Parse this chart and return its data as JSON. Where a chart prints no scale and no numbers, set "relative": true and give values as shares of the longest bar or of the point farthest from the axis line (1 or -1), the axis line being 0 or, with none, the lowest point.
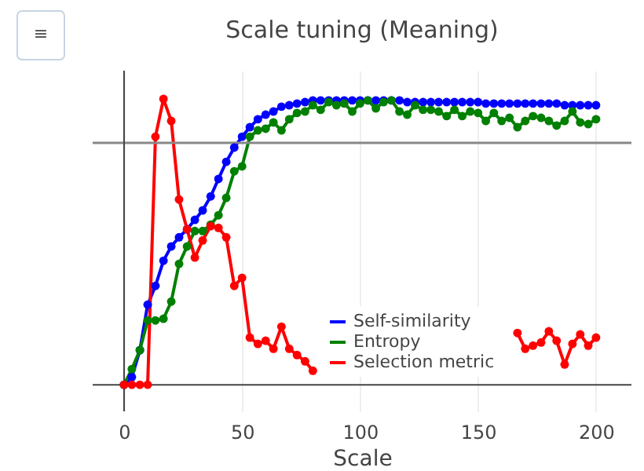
{
  "chart_data": {
    "type": "line",
    "title": "Scale tuning (Meaning)",
    "xlabel": "Scale",
    "relative": true,
    "marker": "circle",
    "line_style": "solid",
    "grid": "x",
    "legend": "bottom right",
    "annotations": [
      "≡"
    ],
    "x": [
      0,
      3.3,
      6.7,
      10,
      13.3,
      16.7,
      20,
      23.3,
      26.7,
      30,
      33.3,
      36.7,
      40,
      43.3,
      46.7,
      50,
      53.3,
      56.7,
      60,
      63.3,
      66.7,
      70,
      73.3,
      76.7,
      80,
      83.3,
      86.7,
      90,
      93.3,
      96.7,
      100,
      103.3,
      106.7,
      110,
      113.3,
      116.7,
      120,
      123.3,
      126.7,
      130,
      133.3,
      136.7,
      140,
      143.3,
      146.7,
      150,
      153.3,
      156.7,
      160,
      163.3,
      166.7,
      170,
      173.3,
      176.7,
      180,
      183.3,
      186.7,
      190,
      193.3,
      196.7,
      200
    ],
    "xlim": [
      -13.3,
      215
    ],
    "xticks": [
      0,
      50,
      100,
      150,
      200
    ],
    "ref_lines": [
      {
        "axis": "y",
        "value": 0.846,
        "color": "#888888"
      }
    ],
    "series": [
      {
        "name": "Self-similarity",
        "color": "#0000ff",
        "values": [
          0,
          0.027,
          0.121,
          0.28,
          0.346,
          0.434,
          0.484,
          0.516,
          0.544,
          0.577,
          0.61,
          0.659,
          0.72,
          0.78,
          0.83,
          0.868,
          0.901,
          0.929,
          0.945,
          0.956,
          0.973,
          0.978,
          0.984,
          0.989,
          0.995,
          0.995,
          0.995,
          0.995,
          0.995,
          0.995,
          0.995,
          0.995,
          0.995,
          0.995,
          0.995,
          0.995,
          0.989,
          0.989,
          0.989,
          0.989,
          0.989,
          0.989,
          0.989,
          0.989,
          0.989,
          0.989,
          0.984,
          0.984,
          0.984,
          0.984,
          0.984,
          0.984,
          0.984,
          0.984,
          0.984,
          0.984,
          0.978,
          0.978,
          0.978,
          0.978,
          0.978
        ]
      },
      {
        "name": "Entropy",
        "color": "#008000",
        "values": [
          0,
          0.055,
          0.121,
          0.225,
          0.225,
          0.231,
          0.291,
          0.423,
          0.484,
          0.538,
          0.538,
          0.56,
          0.593,
          0.654,
          0.747,
          0.764,
          0.868,
          0.89,
          0.896,
          0.918,
          0.89,
          0.929,
          0.951,
          0.956,
          0.978,
          0.962,
          0.989,
          0.978,
          0.984,
          0.956,
          0.984,
          0.995,
          0.967,
          0.989,
          0.995,
          0.956,
          0.945,
          0.978,
          0.962,
          0.962,
          0.956,
          0.94,
          0.962,
          0.94,
          0.956,
          0.951,
          0.923,
          0.951,
          0.923,
          0.934,
          0.901,
          0.923,
          0.94,
          0.934,
          0.923,
          0.907,
          0.923,
          0.956,
          0.918,
          0.912,
          0.929
        ]
      },
      {
        "name": "Selection metric",
        "color": "#ff0000",
        "values": [
          0,
          0,
          0,
          0,
          0.868,
          1.0,
          0.923,
          0.648,
          0.544,
          0.445,
          0.505,
          0.555,
          0.549,
          0.516,
          0.346,
          0.374,
          0.165,
          0.143,
          0.154,
          0.126,
          0.203,
          0.126,
          0.104,
          0.082,
          0.049,
          null,
          null,
          null,
          null,
          null,
          null,
          null,
          null,
          null,
          null,
          null,
          null,
          null,
          null,
          null,
          null,
          null,
          null,
          null,
          null,
          null,
          null,
          null,
          null,
          null,
          0.181,
          0.126,
          0.137,
          0.148,
          0.187,
          0.154,
          0.071,
          0.143,
          0.176,
          0.137,
          0.165
        ]
      }
    ]
  }
}
